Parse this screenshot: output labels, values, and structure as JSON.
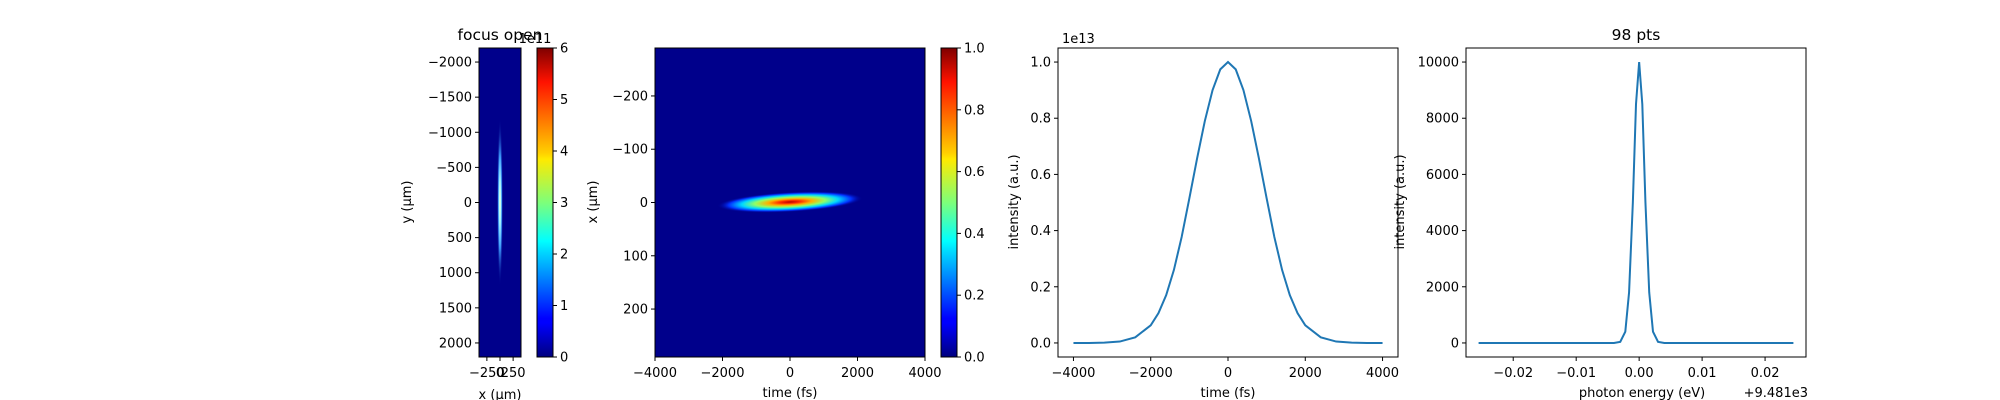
{
  "chart_data": [
    {
      "type": "heatmap",
      "title": "focus open",
      "xlabel": "x (μm)",
      "ylabel": "y (μm)",
      "xlim": [
        -400,
        400
      ],
      "ylim": [
        2200,
        -2200
      ],
      "xticks": [
        -250,
        0,
        250
      ],
      "xtick_labels": [
        "−250",
        "0",
        "250"
      ],
      "yticks": [
        -2000,
        -1500,
        -1000,
        -500,
        0,
        500,
        1000,
        1500,
        2000
      ],
      "ytick_labels": [
        "−2000",
        "−1500",
        "−1000",
        "−500",
        "0",
        "500",
        "1000",
        "1500",
        "2000"
      ],
      "spot": {
        "x_center": 0,
        "y_center": 0,
        "x_width": 30,
        "y_width": 1000
      },
      "colorbar": {
        "colormap": "jet",
        "range": [
          0,
          6
        ],
        "ticks": [
          0,
          1,
          2,
          3,
          4,
          5,
          6
        ],
        "offset_label": "1e11"
      }
    },
    {
      "type": "heatmap",
      "title": "",
      "xlabel": "time (fs)",
      "ylabel": "x (μm)",
      "xlim": [
        -4000,
        4000
      ],
      "ylim": [
        290,
        -290
      ],
      "xticks": [
        -4000,
        -2000,
        0,
        2000,
        4000
      ],
      "xtick_labels": [
        "−4000",
        "−2000",
        "0",
        "2000",
        "4000"
      ],
      "yticks": [
        -200,
        -100,
        0,
        100,
        200
      ],
      "ytick_labels": [
        "−200",
        "−100",
        "0",
        "100",
        "200"
      ],
      "spot": {
        "t_center": 0,
        "x_center": 0,
        "t_width": 1900,
        "x_width": 16,
        "tilt_um_per_fs": -0.009
      },
      "colorbar": {
        "colormap": "jet",
        "range": [
          0,
          1
        ],
        "ticks": [
          0.0,
          0.2,
          0.4,
          0.6,
          0.8,
          1.0
        ],
        "tick_labels": [
          "0.0",
          "0.2",
          "0.4",
          "0.6",
          "0.8",
          "1.0"
        ]
      }
    },
    {
      "type": "line",
      "title": "",
      "xlabel": "time (fs)",
      "ylabel": "intensity (a.u.)",
      "xlim": [
        -4400,
        4400
      ],
      "ylim": [
        -0.05,
        1.05
      ],
      "xticks": [
        -4000,
        -2000,
        0,
        2000,
        4000
      ],
      "xtick_labels": [
        "−4000",
        "−2000",
        "0",
        "2000",
        "4000"
      ],
      "yticks": [
        0.0,
        0.2,
        0.4,
        0.6,
        0.8,
        1.0
      ],
      "ytick_labels": [
        "0.0",
        "0.2",
        "0.4",
        "0.6",
        "0.8",
        "1.0"
      ],
      "offset_label": "1e13",
      "series": [
        {
          "x": [
            -4000,
            -3600,
            -3200,
            -2800,
            -2400,
            -2000,
            -1800,
            -1600,
            -1400,
            -1200,
            -1000,
            -800,
            -600,
            -400,
            -200,
            0,
            200,
            400,
            600,
            800,
            1000,
            1200,
            1400,
            1600,
            1800,
            2000,
            2400,
            2800,
            3200,
            3600,
            4000
          ],
          "y": [
            0.0,
            0.0,
            0.001,
            0.005,
            0.02,
            0.063,
            0.106,
            0.17,
            0.26,
            0.377,
            0.515,
            0.657,
            0.79,
            0.9,
            0.974,
            1.0,
            0.974,
            0.9,
            0.79,
            0.657,
            0.515,
            0.377,
            0.26,
            0.17,
            0.106,
            0.063,
            0.02,
            0.005,
            0.001,
            0.0,
            0.0
          ]
        }
      ]
    },
    {
      "type": "line",
      "title": "98 pts",
      "xlabel": "photon energy (eV)",
      "ylabel": "intensity (a.u.)",
      "xlim": [
        -0.0275,
        0.0265
      ],
      "ylim": [
        -500,
        10500
      ],
      "xticks": [
        -0.02,
        -0.01,
        0.0,
        0.01,
        0.02
      ],
      "xtick_labels": [
        "−0.02",
        "−0.01",
        "0.00",
        "0.01",
        "0.02"
      ],
      "yticks": [
        0,
        2000,
        4000,
        6000,
        8000,
        10000
      ],
      "ytick_labels": [
        "0",
        "2000",
        "4000",
        "6000",
        "8000",
        "10000"
      ],
      "offset_label": "+9.481e3",
      "series": [
        {
          "x": [
            -0.0255,
            -0.004,
            -0.003,
            -0.0022,
            -0.0016,
            -0.001,
            -0.0005,
            0.0,
            0.0005,
            0.001,
            0.0016,
            0.0022,
            0.003,
            0.004,
            0.0245
          ],
          "y": [
            0,
            0,
            40,
            400,
            1800,
            5000,
            8500,
            10000,
            8500,
            5000,
            1800,
            400,
            40,
            0,
            0
          ]
        }
      ]
    }
  ]
}
